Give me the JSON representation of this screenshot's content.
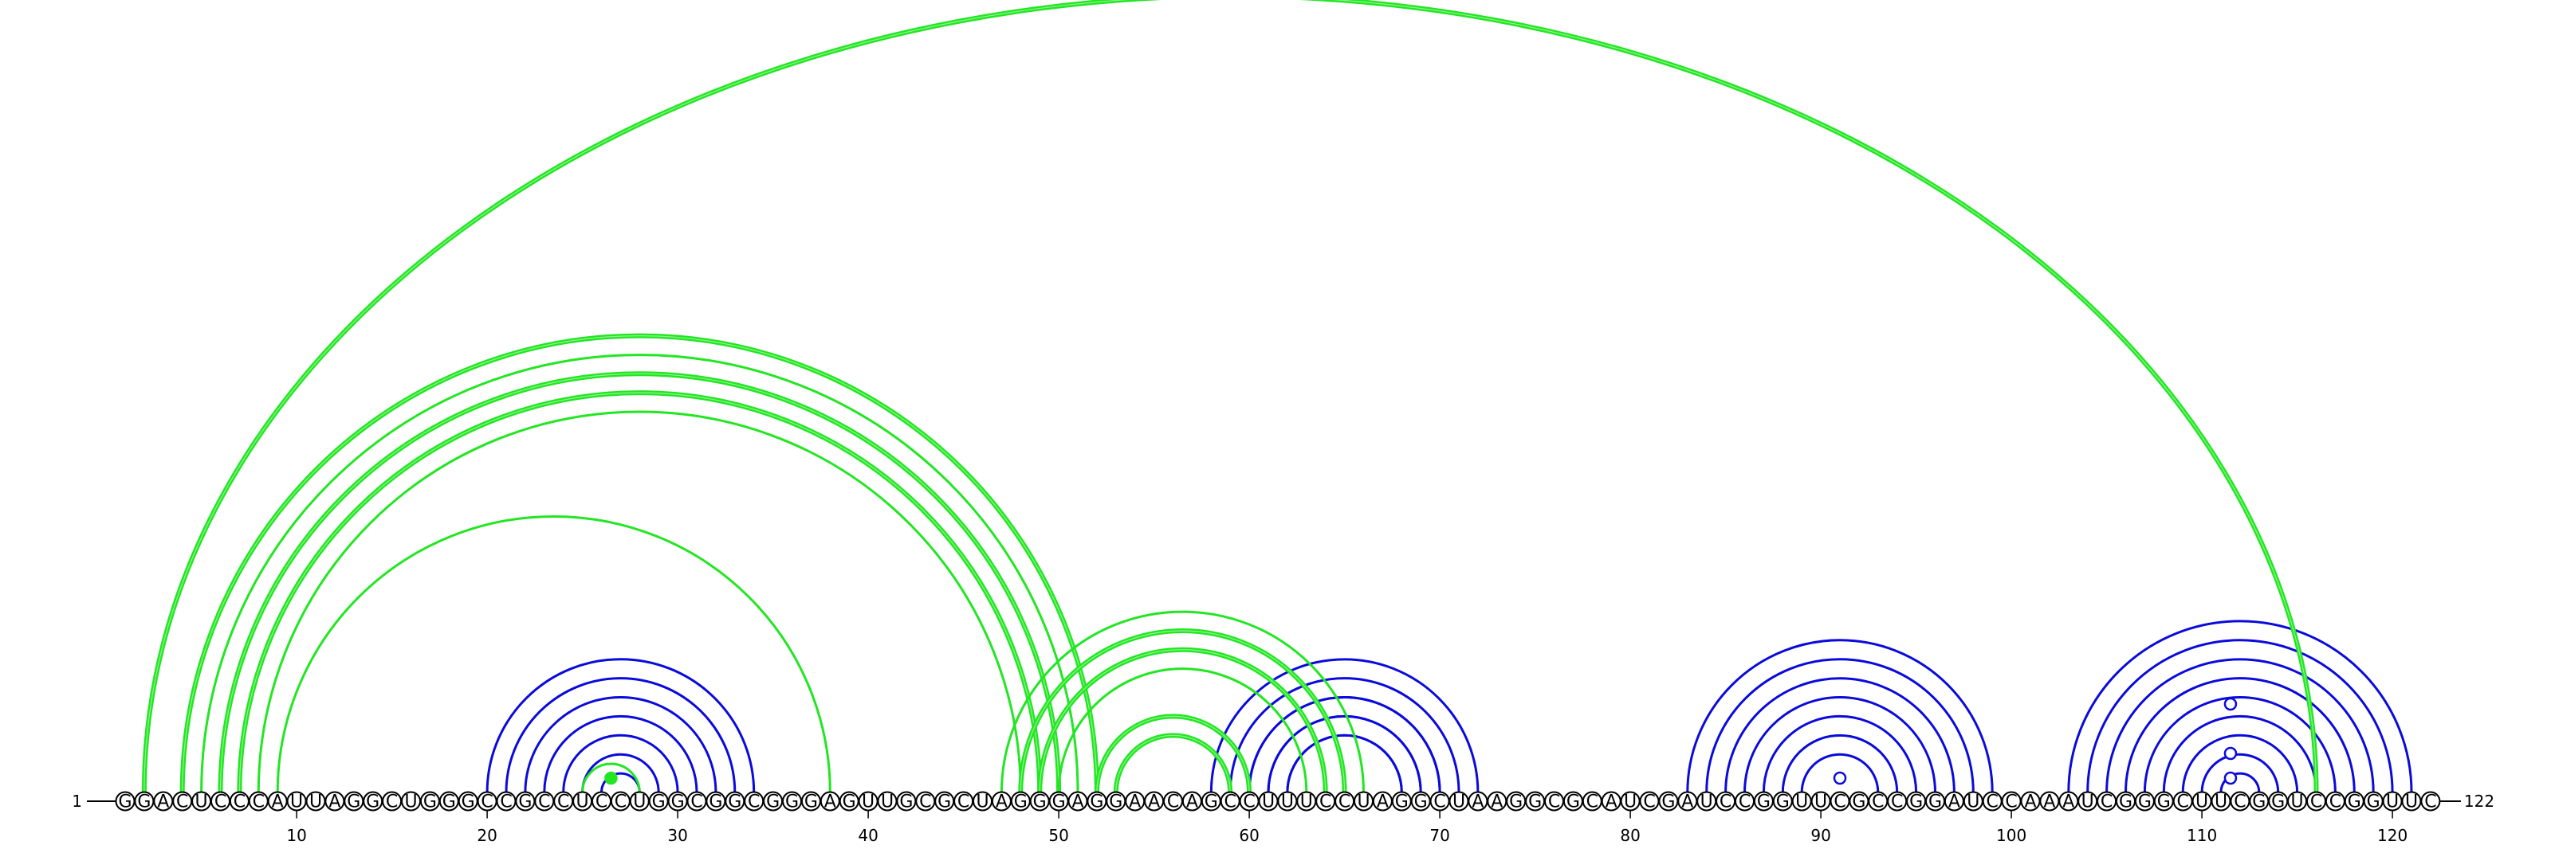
{
  "sequence": {
    "residues": "GGACUCCCAUUAGGCUGGGCCGCCUCCUGGCGGCGGGAGUUGCGCUAGGGAGGAACAGCCUUUCCUAGGCUAAGGCGCAUCGAUCCGGUUCGCCGGAUCCAAAUCGGGCUUCGGUCCGGUUC",
    "start_label": "1",
    "end_label": "122",
    "length": 122
  },
  "axis": {
    "ticks": [
      10,
      20,
      30,
      40,
      50,
      60,
      70,
      80,
      90,
      100,
      110,
      120
    ]
  },
  "colors": {
    "helix_arc": "#0a0adc",
    "pseudoknot_arc": "#22e622",
    "backbone": "#000000",
    "marker": "#22e622"
  },
  "arcs": {
    "helices": [
      {
        "start": 20,
        "end": 34,
        "length": 7
      },
      {
        "start": 58,
        "end": 72,
        "length": 5
      },
      {
        "start": 60,
        "end": 70,
        "length": 3
      },
      {
        "start": 83,
        "end": 99,
        "length": 4
      },
      {
        "start": 87,
        "end": 95,
        "length": 3
      },
      {
        "start": 103,
        "end": 121,
        "length": 3
      },
      {
        "start": 106,
        "end": 118,
        "length": 4
      },
      {
        "start": 110,
        "end": 114,
        "length": 2
      }
    ],
    "pseudoknots": [
      {
        "start": 2,
        "end": 116,
        "length": 1,
        "double": true
      },
      {
        "start": 4,
        "end": 52,
        "length": 1,
        "double": true
      },
      {
        "start": 5,
        "end": 51,
        "length": 1,
        "double": false
      },
      {
        "start": 6,
        "end": 50,
        "length": 1,
        "double": true
      },
      {
        "start": 7,
        "end": 49,
        "length": 1,
        "double": true
      },
      {
        "start": 8,
        "end": 48,
        "length": 1,
        "double": false
      },
      {
        "start": 9,
        "end": 38,
        "length": 1,
        "double": false
      },
      {
        "start": 25,
        "end": 28,
        "length": 1,
        "double": false
      },
      {
        "start": 47,
        "end": 66,
        "length": 1,
        "double": false
      },
      {
        "start": 48,
        "end": 65,
        "length": 1,
        "double": true
      },
      {
        "start": 49,
        "end": 64,
        "length": 1,
        "double": true
      },
      {
        "start": 50,
        "end": 63,
        "length": 1,
        "double": false
      },
      {
        "start": 52,
        "end": 60,
        "length": 1,
        "double": true
      },
      {
        "start": 53,
        "end": 59,
        "length": 1,
        "double": true
      }
    ],
    "markers": [
      {
        "x": 26.5,
        "filled": true
      },
      {
        "x": 91,
        "filled": false
      },
      {
        "x": 111.5,
        "filled": false
      },
      {
        "x": 111.5,
        "filled": false
      },
      {
        "x": 111.5,
        "filled": false
      }
    ]
  }
}
